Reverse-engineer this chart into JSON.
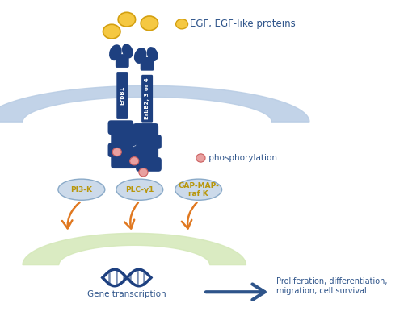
{
  "bg_color": "#ffffff",
  "dark_blue": "#1e4080",
  "receptor_blue": "#1e4080",
  "light_blue_arc": "#b8cce4",
  "light_green_arc": "#d4e8b8",
  "gold_color": "#f5c842",
  "gold_edge": "#d4a010",
  "orange_arrow": "#e07820",
  "pink_phospho": "#e8a0a0",
  "pink_edge": "#cc6060",
  "label_blue": "#2e548a",
  "pathway_label_gold": "#b8960a",
  "pathway_bubble": "#ccdaea",
  "pathway_bubble_edge": "#8aaac8",
  "egf_text": "EGF, EGF-like proteins",
  "phospho_text": " phosphorylation",
  "gene_text": "Gene transcription",
  "outcome_text": "Proliferation, differentiation,\nmigration, cell survival",
  "pathway1": "PI3-K",
  "pathway2": "PLC-γ1",
  "pathway3": "GAP-MAP-\nraf K",
  "erbb1_label": "ErbB1",
  "erbb2_label": "ErbB2, 3 or 4"
}
